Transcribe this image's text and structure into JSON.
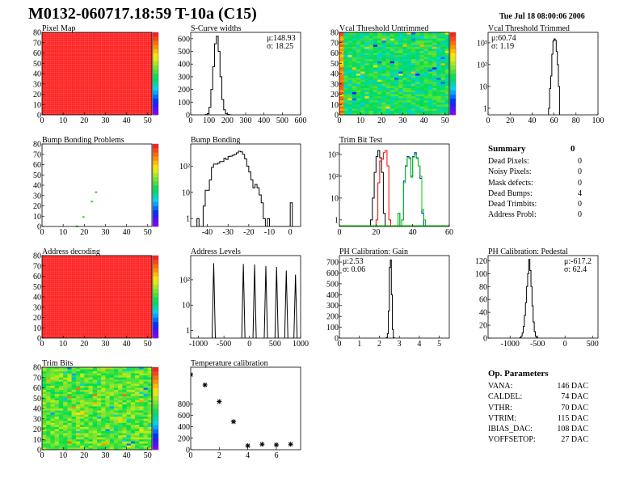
{
  "header": {
    "title": "M0132-060717.18:59 T-10a (C15)",
    "date": "Tue Jul 18 08:00:06 2006"
  },
  "colors": {
    "frame": "#000000",
    "hist": "#000000",
    "red": "#ff0000",
    "blue": "#0000ff",
    "green": "#00cc00",
    "heat_max": "#ff2020"
  },
  "summary": {
    "title": "Summary",
    "total": "0",
    "rows": [
      {
        "label": "Dead Pixels:",
        "value": "0"
      },
      {
        "label": "Noisy Pixels:",
        "value": "0"
      },
      {
        "label": "Mask defects:",
        "value": "0"
      },
      {
        "label": "Dead Bumps:",
        "value": "4"
      },
      {
        "label": "Dead Trimbits:",
        "value": "0"
      },
      {
        "label": "Address Probl:",
        "value": "0"
      }
    ]
  },
  "op_parameters": {
    "title": "Op. Parameters",
    "rows": [
      {
        "label": "VANA:",
        "value": "146 DAC"
      },
      {
        "label": "CALDEL:",
        "value": "74 DAC"
      },
      {
        "label": "VTHR:",
        "value": "70 DAC"
      },
      {
        "label": "VTRIM:",
        "value": "115 DAC"
      },
      {
        "label": "IBIAS_DAC:",
        "value": "108 DAC"
      },
      {
        "label": "VOFFSETOP:",
        "value": "27 DAC"
      }
    ]
  },
  "chart_data": [
    {
      "id": "pixel_map",
      "type": "heatmap",
      "title": "Pixel Map",
      "xlim": [
        0,
        52
      ],
      "ylim": [
        0,
        80
      ],
      "xticks": [
        0,
        10,
        20,
        30,
        40,
        50
      ],
      "yticks": [
        0,
        10,
        20,
        30,
        40,
        50,
        60,
        70,
        80
      ],
      "pattern": "uniform",
      "level": 1.0
    },
    {
      "id": "scurve",
      "type": "histogram",
      "title": "S-Curve widths",
      "xlim": [
        0,
        600
      ],
      "ylim": [
        0,
        650
      ],
      "yscale": "linear",
      "xticks": [
        0,
        100,
        200,
        300,
        400,
        500,
        600
      ],
      "yticks": [
        0,
        100,
        200,
        300,
        400,
        500,
        600
      ],
      "stats": [
        "μ:148.93",
        "σ: 18.25"
      ],
      "stats_pos": "top-right",
      "series": [
        {
          "color": "#000000",
          "x_start": 80,
          "bin_width": 10,
          "values": [
            2,
            10,
            60,
            200,
            380,
            560,
            620,
            500,
            300,
            120,
            40,
            10,
            3,
            1
          ]
        }
      ]
    },
    {
      "id": "vcal_untrimmed",
      "type": "heatmap",
      "title": "Vcal Threshold Untrimmed",
      "xlim": [
        0,
        52
      ],
      "ylim": [
        0,
        80
      ],
      "xticks": [
        0,
        10,
        20,
        30,
        40,
        50
      ],
      "yticks": [
        0,
        10,
        20,
        30,
        40,
        50,
        60,
        70,
        80
      ],
      "pattern": "noisy",
      "level": 0.45,
      "left_edge_level": 0.75
    },
    {
      "id": "vcal_trimmed",
      "type": "histogram",
      "title": "Vcal Threshold Trimmed",
      "xlim": [
        0,
        100
      ],
      "ylim": [
        0.5,
        3000
      ],
      "yscale": "log",
      "xticks": [
        0,
        20,
        40,
        60,
        80,
        100
      ],
      "yticks": [
        1,
        10,
        100,
        1000
      ],
      "ytick_labels": [
        "1",
        "10",
        "10²",
        "10³"
      ],
      "stats": [
        "μ:60.74",
        "σ: 1.19"
      ],
      "stats_pos": "top-left",
      "series": [
        {
          "color": "#000000",
          "x_start": 55,
          "bin_width": 1,
          "values": [
            1,
            8,
            30,
            300,
            1200,
            1500,
            1300,
            400,
            100,
            10
          ]
        }
      ]
    },
    {
      "id": "bump_problems",
      "type": "heatmap",
      "title": "Bump Bonding Problems",
      "xlim": [
        0,
        52
      ],
      "ylim": [
        0,
        80
      ],
      "xticks": [
        0,
        10,
        20,
        30,
        40,
        50
      ],
      "yticks": [
        0,
        10,
        20,
        30,
        40,
        50,
        60,
        70,
        80
      ],
      "pattern": "sparse",
      "points": [
        [
          16,
          0
        ],
        [
          19,
          9
        ],
        [
          23,
          24
        ],
        [
          25,
          33
        ]
      ]
    },
    {
      "id": "bump_bonding",
      "type": "histogram",
      "title": "Bump Bonding",
      "xlim": [
        -48,
        5
      ],
      "ylim": [
        0.5,
        700
      ],
      "yscale": "log",
      "xticks": [
        -40,
        -30,
        -20,
        -10,
        0
      ],
      "yticks": [
        1,
        10,
        100
      ],
      "ytick_labels": [
        "1",
        "10",
        "10²"
      ],
      "series": [
        {
          "color": "#000000",
          "x_start": -45,
          "bin_width": 1,
          "values": [
            1,
            0,
            0,
            3,
            12,
            12,
            30,
            90,
            120,
            120,
            130,
            150,
            150,
            200,
            180,
            230,
            240,
            260,
            280,
            320,
            370,
            350,
            280,
            190,
            100,
            60,
            30,
            15,
            20,
            15,
            8,
            4,
            1,
            0,
            1,
            0,
            0,
            0,
            0,
            0,
            0,
            0,
            0,
            0,
            0,
            4
          ]
        }
      ]
    },
    {
      "id": "trim_bit_test",
      "type": "histogram",
      "title": "Trim Bit Test",
      "xlim": [
        0,
        60
      ],
      "ylim": [
        0.5,
        3000
      ],
      "yscale": "log",
      "xticks": [
        0,
        20,
        40,
        60
      ],
      "yticks": [
        1,
        10,
        100,
        1000
      ],
      "ytick_labels": [
        "1",
        "10",
        "10²",
        "10³"
      ],
      "series": [
        {
          "color": "#000000",
          "x_start": 17,
          "bin_width": 1,
          "values": [
            1,
            10,
            150,
            800,
            1500,
            700,
            150,
            2
          ]
        },
        {
          "color": "#ff0000",
          "x_start": 20,
          "bin_width": 1,
          "values": [
            1,
            50,
            500,
            600,
            1200,
            1500,
            300,
            1
          ]
        },
        {
          "color": "#0000ff",
          "x_start": 32,
          "bin_width": 1,
          "values": [
            2,
            0,
            1,
            60,
            300,
            800,
            700,
            100,
            800,
            1200,
            700,
            300,
            80,
            2
          ]
        },
        {
          "color": "#00cc00",
          "x_start": 32,
          "bin_width": 1,
          "values": [
            2,
            0,
            1,
            50,
            280,
            750,
            650,
            90,
            750,
            1000,
            650,
            300,
            100,
            3,
            1
          ]
        }
      ]
    },
    {
      "id": "address_decoding",
      "type": "heatmap",
      "title": "Address decoding",
      "xlim": [
        0,
        52
      ],
      "ylim": [
        0,
        80
      ],
      "xticks": [
        0,
        10,
        20,
        30,
        40,
        50
      ],
      "yticks": [
        0,
        10,
        20,
        30,
        40,
        50,
        60,
        70,
        80
      ],
      "pattern": "uniform",
      "level": 1.0
    },
    {
      "id": "address_levels",
      "type": "spikes",
      "title": "Address Levels",
      "xlim": [
        -1150,
        1000
      ],
      "ylim": [
        0.5,
        900
      ],
      "yscale": "log",
      "xticks": [
        -1000,
        -500,
        0,
        500,
        1000
      ],
      "yticks": [
        1,
        10,
        100
      ],
      "ytick_labels": [
        "1",
        "10",
        "10²"
      ],
      "series": [
        {
          "color": "#000000",
          "x": [
            -700,
            -120,
            100,
            320,
            530,
            720,
            900
          ],
          "values": [
            450,
            420,
            400,
            350,
            320,
            230,
            160
          ]
        }
      ]
    },
    {
      "id": "ph_gain",
      "type": "histogram",
      "title": "PH Calibration: Gain",
      "xlim": [
        0,
        5.5
      ],
      "ylim": [
        0,
        760
      ],
      "yscale": "linear",
      "xticks": [
        0,
        1,
        2,
        3,
        4,
        5
      ],
      "yticks": [
        0,
        100,
        200,
        300,
        400,
        500,
        600,
        700
      ],
      "stats": [
        "μ:2.53",
        "σ: 0.06"
      ],
      "stats_pos": "top-left",
      "series": [
        {
          "color": "#000000",
          "x_start": 2.35,
          "bin_width": 0.05,
          "values": [
            5,
            40,
            250,
            650,
            720,
            400,
            80,
            5
          ]
        }
      ]
    },
    {
      "id": "ph_pedestal",
      "type": "histogram",
      "title": "PH Calibration: Pedestal",
      "xlim": [
        -1400,
        600
      ],
      "ylim": [
        0,
        128
      ],
      "yscale": "linear",
      "xticks": [
        -1000,
        -500,
        0,
        500
      ],
      "yticks": [
        0,
        20,
        40,
        60,
        80,
        100,
        120
      ],
      "stats": [
        "μ:-617.2",
        "σ: 62.4"
      ],
      "stats_pos": "top-right",
      "series": [
        {
          "color": "#000000",
          "x_start": -820,
          "bin_width": 20,
          "values": [
            1,
            3,
            8,
            18,
            35,
            55,
            80,
            100,
            122,
            105,
            80,
            50,
            25,
            10,
            3,
            1
          ]
        }
      ]
    },
    {
      "id": "trim_bits",
      "type": "heatmap",
      "title": "Trim Bits",
      "xlim": [
        0,
        52
      ],
      "ylim": [
        0,
        80
      ],
      "xticks": [
        0,
        10,
        20,
        30,
        40,
        50
      ],
      "yticks": [
        0,
        10,
        20,
        30,
        40,
        50,
        60,
        70,
        80
      ],
      "pattern": "noisy",
      "level": 0.55
    },
    {
      "id": "temperature",
      "type": "scatter",
      "title": "Temperature calibration",
      "xlim": [
        0,
        7.7
      ],
      "ylim": [
        0,
        1440
      ],
      "yscale": "linear",
      "xticks": [
        0,
        2,
        4,
        6
      ],
      "yticks": [
        0,
        200,
        400,
        600,
        800
      ],
      "series": [
        {
          "color": "#000000",
          "x": [
            0,
            1,
            2,
            3,
            4,
            5,
            6,
            7
          ],
          "values": [
            1310,
            1130,
            840,
            490,
            70,
            95,
            85,
            95
          ]
        }
      ]
    }
  ]
}
